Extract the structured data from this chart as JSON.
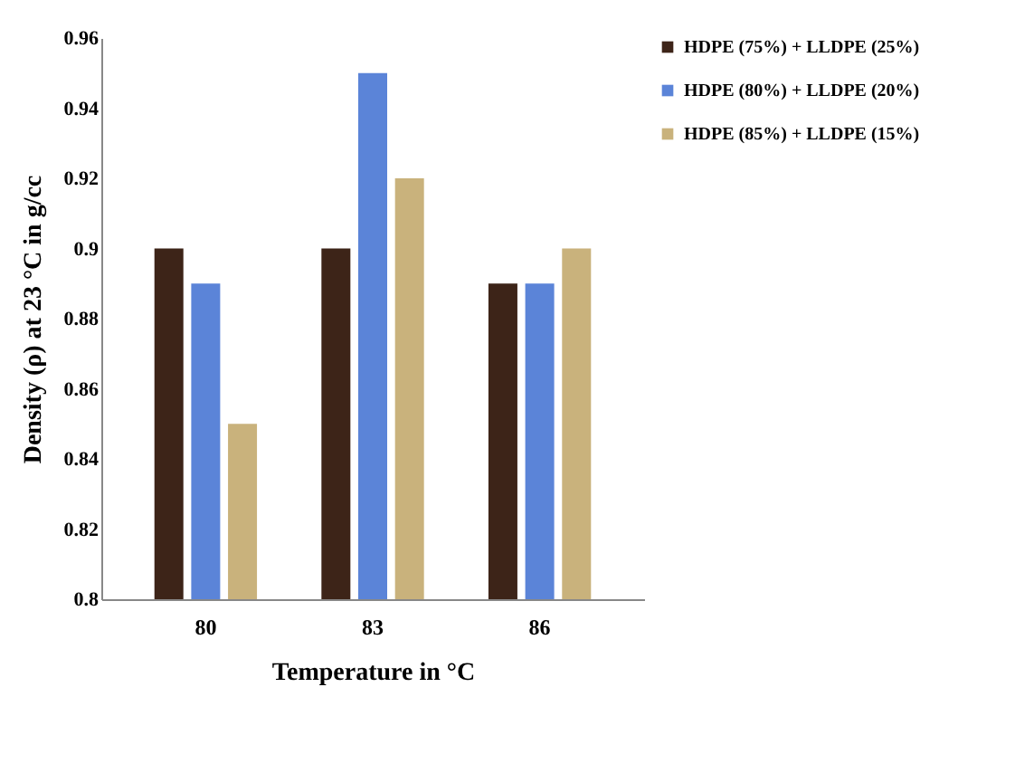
{
  "chart_data": {
    "type": "bar",
    "xlabel": "Temperature in °C",
    "ylabel": "Density (ρ) at 23 °C in g/cc",
    "categories": [
      "80",
      "83",
      "86"
    ],
    "series": [
      {
        "name": "HDPE (75%) + LLDPE (25%)",
        "color": "#3d2418",
        "values": [
          0.9,
          0.9,
          0.89
        ]
      },
      {
        "name": "HDPE (80%) + LLDPE (20%)",
        "color": "#5b84d8",
        "values": [
          0.89,
          0.95,
          0.89
        ]
      },
      {
        "name": "HDPE (85%) + LLDPE (15%)",
        "color": "#c9b27c",
        "values": [
          0.85,
          0.92,
          0.9
        ]
      }
    ],
    "ylim": [
      0.8,
      0.96
    ],
    "yticks": [
      0.8,
      0.82,
      0.84,
      0.86,
      0.88,
      0.9,
      0.92,
      0.94,
      0.96
    ],
    "grid": false,
    "legend": "right"
  }
}
